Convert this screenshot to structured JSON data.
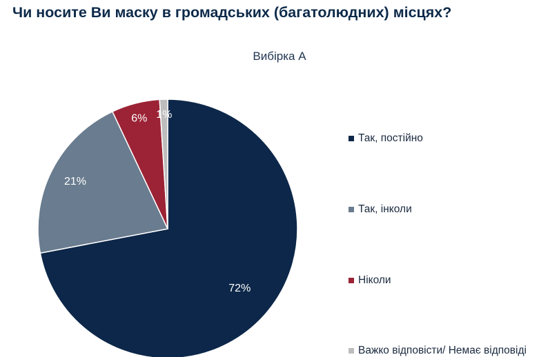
{
  "colors": {
    "always": "#0c2749",
    "sometimes": "#6a7c8f",
    "never": "#9b2335",
    "hard_to_say": "#bdbdbd"
  },
  "chart_data": {
    "type": "pie",
    "title": "Чи носите Ви маску в громадських (багатолюдних) місцях?",
    "subtitle": "Вибірка А",
    "legend_position": "right",
    "slices": [
      {
        "label": "Так, постійно",
        "value": 72,
        "display": "72%",
        "color": "#0c2749"
      },
      {
        "label": "Так, інколи",
        "value": 21,
        "display": "21%",
        "color": "#6a7c8f"
      },
      {
        "label": "Ніколи",
        "value": 6,
        "display": "6%",
        "color": "#9b2335"
      },
      {
        "label": "Важко відповісти/ Немає відповіді",
        "value": 1,
        "display": "1%",
        "color": "#bdbdbd"
      }
    ]
  }
}
